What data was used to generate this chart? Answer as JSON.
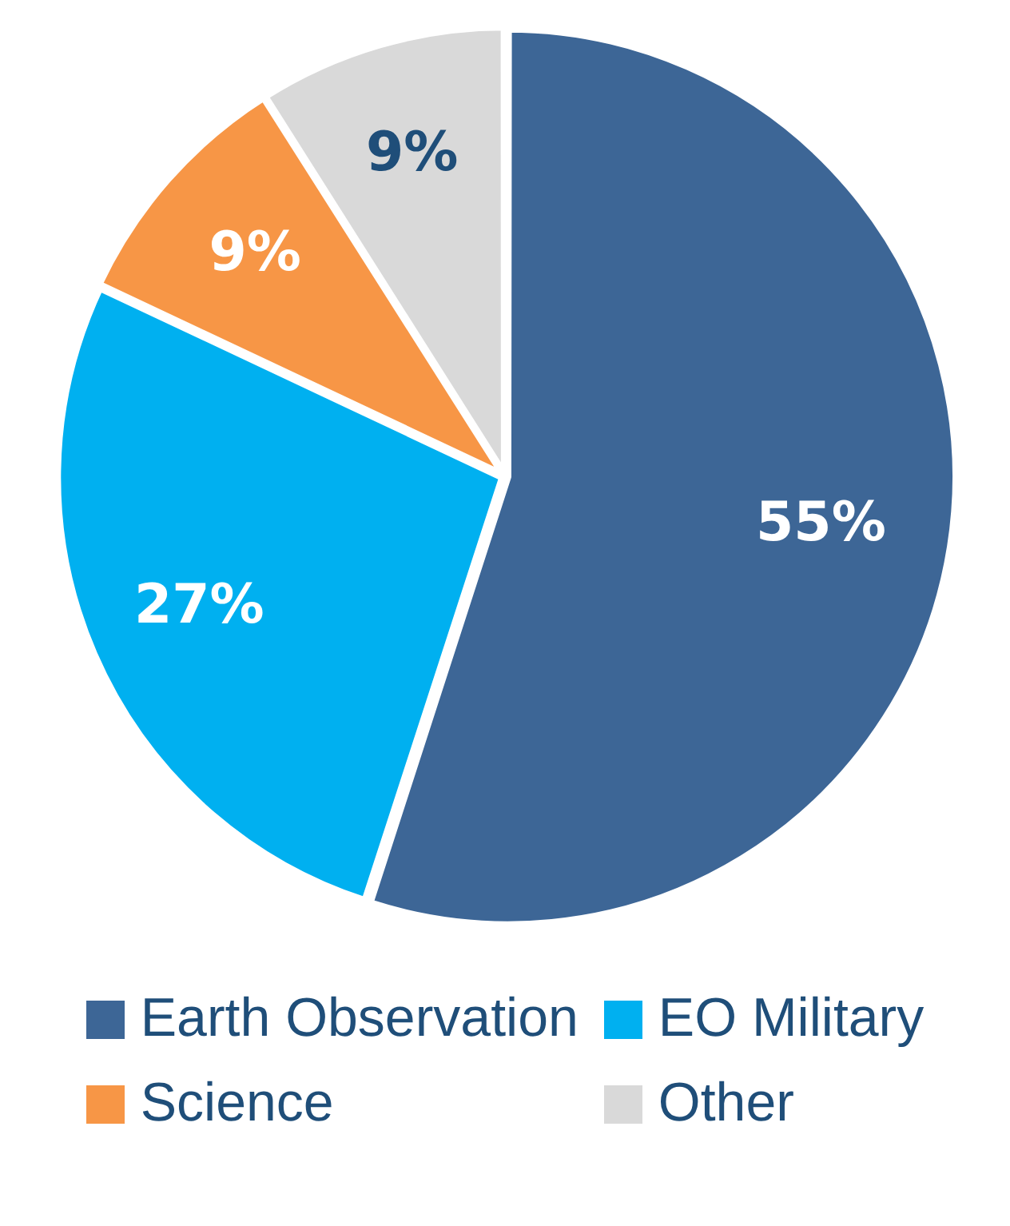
{
  "chart_data": {
    "type": "pie",
    "categories": [
      "Earth Observation",
      "EO Military",
      "Science",
      "Other"
    ],
    "values": [
      55,
      27,
      9,
      9
    ],
    "colors": [
      "#3d6696",
      "#00b0f0",
      "#f79646",
      "#d9d9d9"
    ],
    "value_labels": [
      "55%",
      "27%",
      "9%",
      "9%"
    ],
    "legend": "bottom"
  }
}
